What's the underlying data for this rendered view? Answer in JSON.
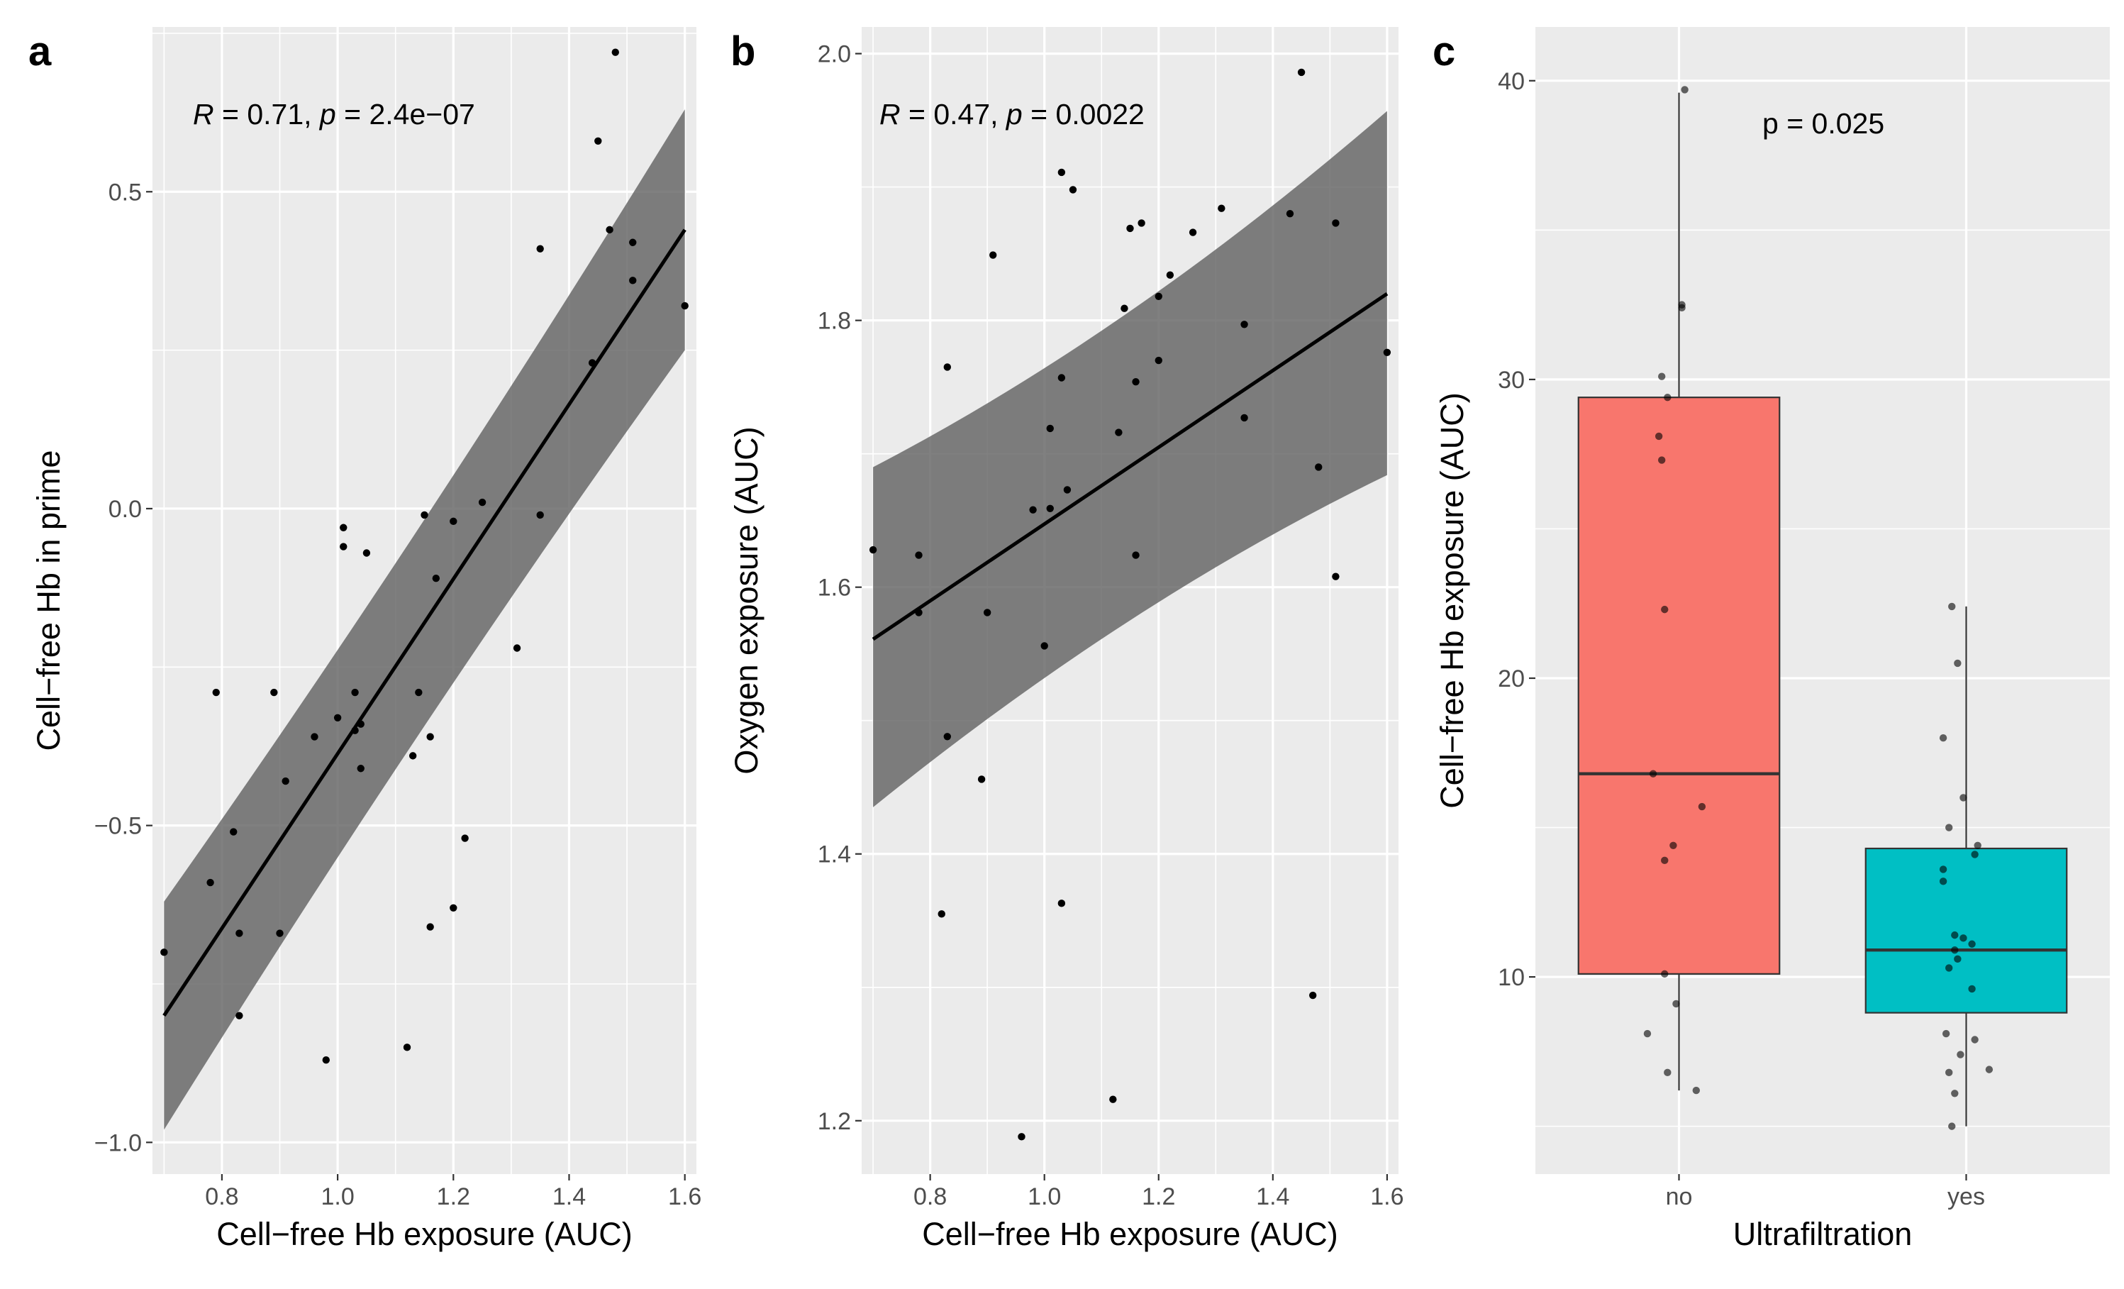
{
  "chart_data": [
    {
      "type": "scatter",
      "panel_label": "a",
      "xlabel": "Cell−free Hb exposure (AUC)",
      "ylabel": "Cell−free Hb in prime",
      "xlim": [
        0.68,
        1.62
      ],
      "ylim": [
        -1.05,
        0.76
      ],
      "x_ticks": [
        0.8,
        1.0,
        1.2,
        1.4,
        1.6
      ],
      "x_tick_labels": [
        "0.8",
        "1.0",
        "1.2",
        "1.4",
        "1.6"
      ],
      "y_ticks": [
        -1.0,
        -0.5,
        0.0,
        0.5
      ],
      "y_tick_labels": [
        "−1.0",
        "−0.5",
        "0.0",
        "0.5"
      ],
      "annotation": {
        "r_label": "R",
        "r_text": " = 0.71, ",
        "p_label": "p",
        "p_text": " = 2.4e−07"
      },
      "fit": {
        "x": [
          0.7,
          1.6
        ],
        "y": [
          -0.8,
          0.44
        ],
        "ci_lower": [
          -0.98,
          0.25
        ],
        "ci_upper": [
          -0.62,
          0.63
        ]
      },
      "points": [
        {
          "x": 0.7,
          "y": -0.7
        },
        {
          "x": 0.78,
          "y": -0.59
        },
        {
          "x": 0.79,
          "y": -0.29
        },
        {
          "x": 0.82,
          "y": -0.51
        },
        {
          "x": 0.83,
          "y": -0.67
        },
        {
          "x": 0.83,
          "y": -0.8
        },
        {
          "x": 0.89,
          "y": -0.29
        },
        {
          "x": 0.9,
          "y": -0.67
        },
        {
          "x": 0.91,
          "y": -0.43
        },
        {
          "x": 0.96,
          "y": -0.36
        },
        {
          "x": 0.98,
          "y": -0.87
        },
        {
          "x": 1.0,
          "y": -0.33
        },
        {
          "x": 1.01,
          "y": -0.03
        },
        {
          "x": 1.01,
          "y": -0.06
        },
        {
          "x": 1.03,
          "y": -0.29
        },
        {
          "x": 1.03,
          "y": -0.35
        },
        {
          "x": 1.04,
          "y": -0.34
        },
        {
          "x": 1.04,
          "y": -0.41
        },
        {
          "x": 1.05,
          "y": -0.07
        },
        {
          "x": 1.12,
          "y": -0.85
        },
        {
          "x": 1.13,
          "y": -0.39
        },
        {
          "x": 1.14,
          "y": -0.29
        },
        {
          "x": 1.15,
          "y": -0.01
        },
        {
          "x": 1.16,
          "y": -0.36
        },
        {
          "x": 1.16,
          "y": -0.66
        },
        {
          "x": 1.17,
          "y": -0.11
        },
        {
          "x": 1.2,
          "y": -0.02
        },
        {
          "x": 1.2,
          "y": -0.63
        },
        {
          "x": 1.22,
          "y": -0.52
        },
        {
          "x": 1.25,
          "y": 0.01
        },
        {
          "x": 1.31,
          "y": -0.22
        },
        {
          "x": 1.35,
          "y": 0.41
        },
        {
          "x": 1.35,
          "y": -0.01
        },
        {
          "x": 1.44,
          "y": 0.23
        },
        {
          "x": 1.45,
          "y": 0.58
        },
        {
          "x": 1.47,
          "y": 0.44
        },
        {
          "x": 1.48,
          "y": 0.72
        },
        {
          "x": 1.51,
          "y": 0.42
        },
        {
          "x": 1.51,
          "y": 0.36
        },
        {
          "x": 1.6,
          "y": 0.32
        }
      ]
    },
    {
      "type": "scatter",
      "panel_label": "b",
      "xlabel": "Cell−free Hb exposure (AUC)",
      "ylabel": "Oxygen exposure (AUC)",
      "xlim": [
        0.68,
        1.62
      ],
      "ylim": [
        1.16,
        2.02
      ],
      "x_ticks": [
        0.8,
        1.0,
        1.2,
        1.4,
        1.6
      ],
      "x_tick_labels": [
        "0.8",
        "1.0",
        "1.2",
        "1.4",
        "1.6"
      ],
      "y_ticks": [
        1.2,
        1.4,
        1.6,
        1.8,
        2.0
      ],
      "y_tick_labels": [
        "1.2",
        "1.4",
        "1.6",
        "1.8",
        "2.0"
      ],
      "annotation": {
        "r_label": "R",
        "r_text": " = 0.47, ",
        "p_label": "p",
        "p_text": " = 0.0022"
      },
      "fit": {
        "x": [
          0.7,
          1.6
        ],
        "y": [
          1.561,
          1.82
        ],
        "ci_lower": [
          1.435,
          1.684
        ],
        "ci_upper": [
          1.69,
          1.957
        ]
      },
      "points": [
        {
          "x": 0.7,
          "y": 1.628
        },
        {
          "x": 0.78,
          "y": 1.624
        },
        {
          "x": 0.78,
          "y": 1.581
        },
        {
          "x": 0.82,
          "y": 1.355
        },
        {
          "x": 0.83,
          "y": 1.765
        },
        {
          "x": 0.83,
          "y": 1.488
        },
        {
          "x": 0.89,
          "y": 1.456
        },
        {
          "x": 0.9,
          "y": 1.581
        },
        {
          "x": 0.91,
          "y": 1.849
        },
        {
          "x": 0.96,
          "y": 1.188
        },
        {
          "x": 0.98,
          "y": 1.658
        },
        {
          "x": 1.0,
          "y": 1.556
        },
        {
          "x": 1.01,
          "y": 1.719
        },
        {
          "x": 1.01,
          "y": 1.659
        },
        {
          "x": 1.03,
          "y": 1.911
        },
        {
          "x": 1.03,
          "y": 1.757
        },
        {
          "x": 1.03,
          "y": 1.363
        },
        {
          "x": 1.04,
          "y": 1.673
        },
        {
          "x": 1.05,
          "y": 1.898
        },
        {
          "x": 1.12,
          "y": 1.216
        },
        {
          "x": 1.13,
          "y": 1.716
        },
        {
          "x": 1.14,
          "y": 1.809
        },
        {
          "x": 1.15,
          "y": 1.869
        },
        {
          "x": 1.16,
          "y": 1.754
        },
        {
          "x": 1.16,
          "y": 1.624
        },
        {
          "x": 1.17,
          "y": 1.873
        },
        {
          "x": 1.2,
          "y": 1.818
        },
        {
          "x": 1.2,
          "y": 1.77
        },
        {
          "x": 1.22,
          "y": 1.834
        },
        {
          "x": 1.26,
          "y": 1.866
        },
        {
          "x": 1.31,
          "y": 1.884
        },
        {
          "x": 1.35,
          "y": 1.797
        },
        {
          "x": 1.35,
          "y": 1.727
        },
        {
          "x": 1.43,
          "y": 1.88
        },
        {
          "x": 1.45,
          "y": 1.986
        },
        {
          "x": 1.47,
          "y": 1.294
        },
        {
          "x": 1.48,
          "y": 1.69
        },
        {
          "x": 1.51,
          "y": 1.873
        },
        {
          "x": 1.51,
          "y": 1.608
        },
        {
          "x": 1.6,
          "y": 1.776
        }
      ]
    },
    {
      "type": "box",
      "panel_label": "c",
      "xlabel": "Ultrafiltration",
      "ylabel": "Cell−free Hb exposure (AUC)",
      "ylim": [
        3.4,
        41.8
      ],
      "y_ticks": [
        10,
        20,
        30,
        40
      ],
      "y_tick_labels": [
        "10",
        "20",
        "30",
        "40"
      ],
      "categories": [
        "no",
        "yes"
      ],
      "annotation": "p = 0.025",
      "boxes": [
        {
          "group": "no",
          "color": "#f8766d",
          "min": 6.2,
          "q1": 10.1,
          "median": 16.8,
          "q3": 29.4,
          "max": 39.6
        },
        {
          "group": "yes",
          "color": "#00bfc4",
          "min": 5.0,
          "q1": 8.8,
          "median": 10.9,
          "q3": 14.3,
          "max": 22.4
        }
      ],
      "jitter_points": [
        {
          "group": "no",
          "offset": 0.02,
          "y": 39.7
        },
        {
          "group": "no",
          "offset": 0.01,
          "y": 32.5
        },
        {
          "group": "no",
          "offset": 0.01,
          "y": 32.4
        },
        {
          "group": "no",
          "offset": -0.06,
          "y": 30.1
        },
        {
          "group": "no",
          "offset": -0.04,
          "y": 29.4
        },
        {
          "group": "no",
          "offset": -0.07,
          "y": 28.1
        },
        {
          "group": "no",
          "offset": -0.06,
          "y": 27.3
        },
        {
          "group": "no",
          "offset": -0.05,
          "y": 22.3
        },
        {
          "group": "no",
          "offset": -0.09,
          "y": 16.8
        },
        {
          "group": "no",
          "offset": 0.08,
          "y": 15.7
        },
        {
          "group": "no",
          "offset": -0.02,
          "y": 14.4
        },
        {
          "group": "no",
          "offset": -0.05,
          "y": 13.9
        },
        {
          "group": "no",
          "offset": -0.05,
          "y": 10.1
        },
        {
          "group": "no",
          "offset": -0.01,
          "y": 9.1
        },
        {
          "group": "no",
          "offset": -0.11,
          "y": 8.1
        },
        {
          "group": "no",
          "offset": -0.04,
          "y": 6.8
        },
        {
          "group": "no",
          "offset": 0.06,
          "y": 6.2
        },
        {
          "group": "yes",
          "offset": -0.05,
          "y": 22.4
        },
        {
          "group": "yes",
          "offset": -0.03,
          "y": 20.5
        },
        {
          "group": "yes",
          "offset": -0.08,
          "y": 18.0
        },
        {
          "group": "yes",
          "offset": -0.01,
          "y": 16.0
        },
        {
          "group": "yes",
          "offset": -0.06,
          "y": 15.0
        },
        {
          "group": "yes",
          "offset": 0.04,
          "y": 14.4
        },
        {
          "group": "yes",
          "offset": 0.03,
          "y": 14.1
        },
        {
          "group": "yes",
          "offset": -0.08,
          "y": 13.6
        },
        {
          "group": "yes",
          "offset": -0.08,
          "y": 13.2
        },
        {
          "group": "yes",
          "offset": -0.04,
          "y": 11.4
        },
        {
          "group": "yes",
          "offset": -0.01,
          "y": 11.3
        },
        {
          "group": "yes",
          "offset": 0.02,
          "y": 11.1
        },
        {
          "group": "yes",
          "offset": -0.04,
          "y": 10.9
        },
        {
          "group": "yes",
          "offset": -0.03,
          "y": 10.6
        },
        {
          "group": "yes",
          "offset": -0.06,
          "y": 10.3
        },
        {
          "group": "yes",
          "offset": 0.02,
          "y": 9.6
        },
        {
          "group": "yes",
          "offset": -0.07,
          "y": 8.1
        },
        {
          "group": "yes",
          "offset": 0.03,
          "y": 7.9
        },
        {
          "group": "yes",
          "offset": -0.02,
          "y": 7.4
        },
        {
          "group": "yes",
          "offset": -0.06,
          "y": 6.8
        },
        {
          "group": "yes",
          "offset": 0.08,
          "y": 6.9
        },
        {
          "group": "yes",
          "offset": -0.04,
          "y": 6.1
        },
        {
          "group": "yes",
          "offset": -0.05,
          "y": 5.0
        }
      ]
    }
  ]
}
